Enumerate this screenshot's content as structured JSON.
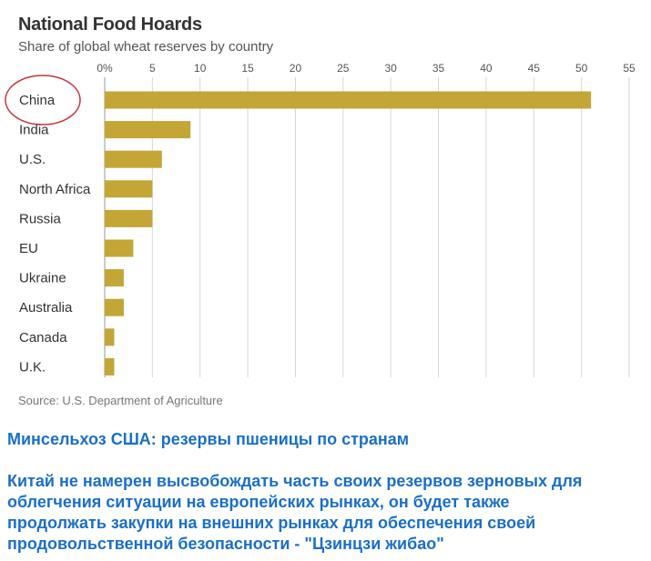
{
  "header": {
    "title": "National Food Hoards",
    "subtitle": "Share of global wheat reserves by country"
  },
  "chart_data": {
    "type": "bar",
    "orientation": "horizontal",
    "categories": [
      "China",
      "India",
      "U.S.",
      "North Africa",
      "Russia",
      "EU",
      "Ukraine",
      "Australia",
      "Canada",
      "U.K."
    ],
    "values": [
      51,
      9,
      6,
      5,
      5,
      3,
      2,
      2,
      1,
      1
    ],
    "xlim": [
      0,
      55
    ],
    "ticks": [
      "0%",
      "5",
      "10",
      "15",
      "20",
      "25",
      "30",
      "35",
      "40",
      "45",
      "50",
      "55"
    ],
    "grid": true,
    "bar_color": "#c4a637",
    "highlighted_category": "China",
    "highlight_color": "#c8323c"
  },
  "source": "Source: U.S. Department of Agriculture",
  "caption": {
    "headline": "Минсельхоз США: резервы пшеницы по странам",
    "lines": [
      "Китай не намерен высвобождать часть своих резервов зерновых для",
      "облегчения ситуации на европейских рынках, он будет также",
      "продолжать закупки на внешних рынках для обеспечения своей",
      "продовольственной безопасности -  \"Цзинцзи жибао\""
    ]
  }
}
